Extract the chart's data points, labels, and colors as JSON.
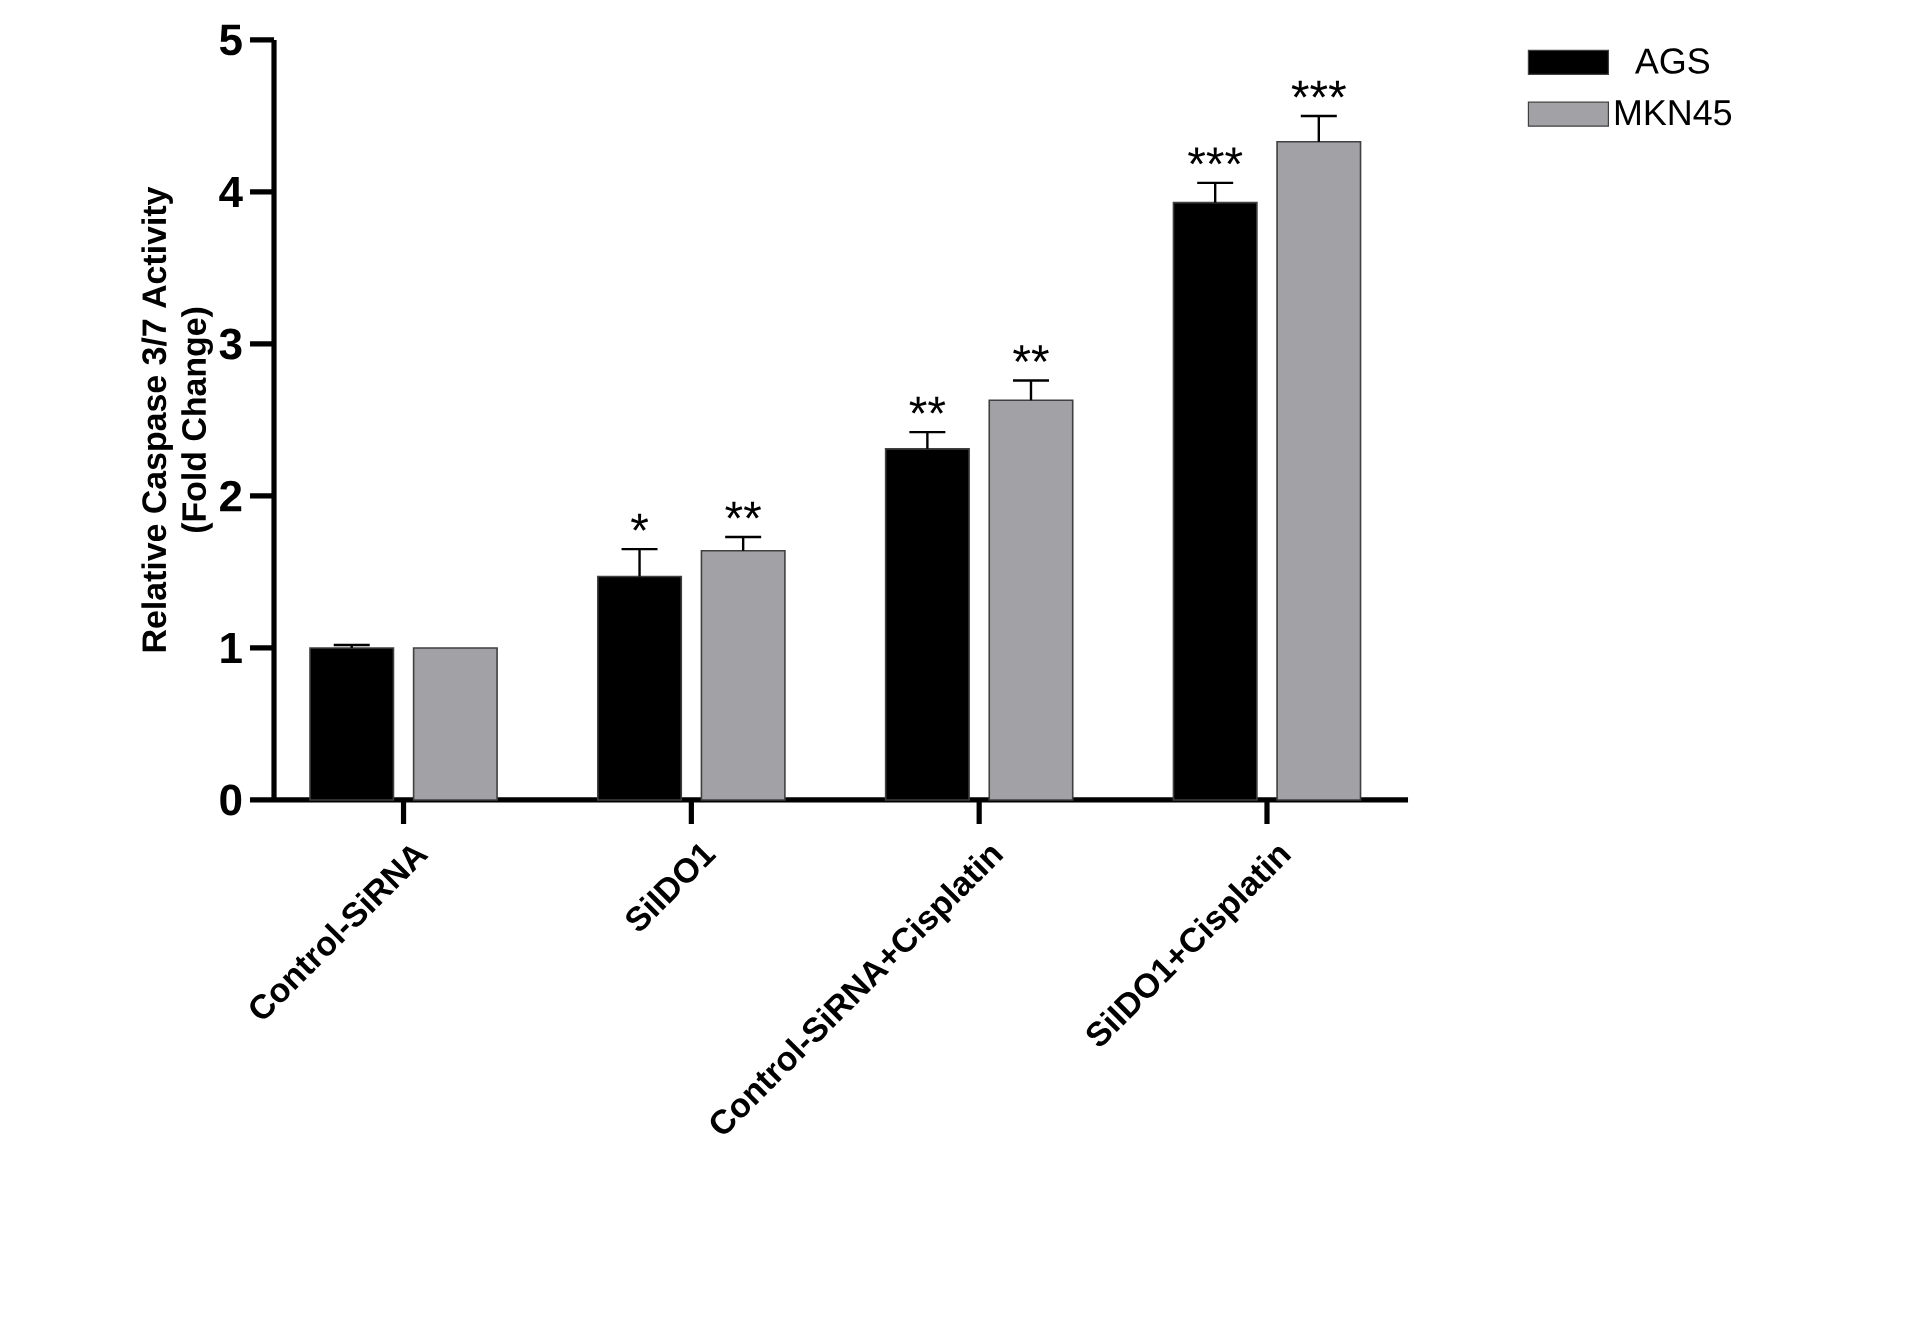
{
  "chart_data": {
    "type": "bar",
    "ylabel": "Relative Caspase 3/7 Activity\n(Fold Change)",
    "categories": [
      "Control-SiRNA",
      "SiIDO1",
      "Control-SiRNA+Cisplatin",
      "SiIDO1+Cisplatin"
    ],
    "series": [
      {
        "name": "AGS",
        "color": "#000000",
        "values": [
          1.0,
          1.47,
          2.31,
          3.93
        ],
        "errors": [
          0.02,
          0.18,
          0.11,
          0.13
        ]
      },
      {
        "name": "MKN45",
        "color": "#a2a1a6",
        "values": [
          1.0,
          1.64,
          2.63,
          4.33
        ],
        "errors": [
          null,
          0.09,
          0.13,
          0.17
        ]
      }
    ],
    "ylim": [
      0,
      5
    ],
    "yticks": [
      0,
      1,
      2,
      3,
      4,
      5
    ],
    "legend": "top right",
    "grid": false,
    "annotations": [
      "*",
      "**",
      "**",
      "**",
      "***",
      "***"
    ]
  }
}
